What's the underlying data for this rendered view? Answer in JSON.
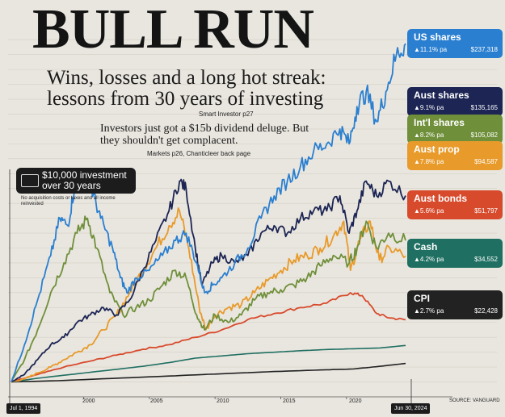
{
  "headline": "BULL RUN",
  "subhead": "Wins, losses and a long hot streak: lessons from 30 years of investing",
  "ref_smart": "Smart Investor p27",
  "dek": "Investors just got a $15b dividend deluge. But they shouldn't get complacent.",
  "ref_markets": "Markets p26, Chanticleer back page",
  "callout": {
    "line1": "$10,000 investment",
    "line2": "over 30 years",
    "icon": "cash-note-icon"
  },
  "note": "No acquisition costs or taxes and all income reinvested",
  "source": "SOURCE: VANGUARD",
  "chart_data": {
    "type": "line",
    "title": "",
    "xlabel": "",
    "ylabel": "",
    "x_ticks": [
      "2000",
      "2005",
      "2010",
      "2015",
      "2020"
    ],
    "start_label": "Jul 1, 1994",
    "end_label": "Jun 30, 2024",
    "xlim": [
      1994.5,
      2024.5
    ],
    "ylim": [
      0,
      245000
    ],
    "grid": true,
    "series": [
      {
        "name": "US shares",
        "rate": "▲11.1% pa",
        "value_label": "$237,318",
        "color": "#2a7fd0",
        "points": [
          [
            1994.5,
            10000
          ],
          [
            1995.5,
            35000
          ],
          [
            1996.5,
            65000
          ],
          [
            1997.5,
            95000
          ],
          [
            1998.2,
            120000
          ],
          [
            1998.8,
            115000
          ],
          [
            1999.3,
            140000
          ],
          [
            2000.0,
            150000
          ],
          [
            2000.6,
            140000
          ],
          [
            2001.3,
            120000
          ],
          [
            2002.2,
            100000
          ],
          [
            2002.8,
            80000
          ],
          [
            2003.3,
            70000
          ],
          [
            2004.0,
            80000
          ],
          [
            2005.0,
            85000
          ],
          [
            2006.0,
            95000
          ],
          [
            2007.0,
            105000
          ],
          [
            2007.8,
            110000
          ],
          [
            2008.6,
            90000
          ],
          [
            2009.2,
            70000
          ],
          [
            2009.8,
            75000
          ],
          [
            2010.5,
            80000
          ],
          [
            2011.5,
            90000
          ],
          [
            2012.5,
            100000
          ],
          [
            2013.5,
            120000
          ],
          [
            2014.5,
            135000
          ],
          [
            2015.5,
            145000
          ],
          [
            2016.5,
            155000
          ],
          [
            2017.5,
            165000
          ],
          [
            2018.5,
            170000
          ],
          [
            2019.5,
            180000
          ],
          [
            2020.2,
            170000
          ],
          [
            2020.8,
            195000
          ],
          [
            2021.5,
            205000
          ],
          [
            2022.3,
            185000
          ],
          [
            2023.0,
            205000
          ],
          [
            2023.8,
            230000
          ],
          [
            2024.5,
            237318
          ]
        ]
      },
      {
        "name": "Aust shares",
        "rate": "▲9.1% pa",
        "value_label": "$135,165",
        "color": "#1c2554",
        "points": [
          [
            1994.5,
            10000
          ],
          [
            1995.5,
            15000
          ],
          [
            1996.5,
            25000
          ],
          [
            1997.5,
            35000
          ],
          [
            1998.5,
            40000
          ],
          [
            1999.5,
            50000
          ],
          [
            2000.5,
            55000
          ],
          [
            2001.5,
            60000
          ],
          [
            2002.5,
            55000
          ],
          [
            2003.5,
            65000
          ],
          [
            2004.5,
            85000
          ],
          [
            2005.5,
            105000
          ],
          [
            2006.5,
            125000
          ],
          [
            2007.3,
            145000
          ],
          [
            2007.8,
            140000
          ],
          [
            2008.5,
            100000
          ],
          [
            2009.0,
            75000
          ],
          [
            2009.8,
            90000
          ],
          [
            2010.5,
            95000
          ],
          [
            2011.5,
            90000
          ],
          [
            2012.5,
            95000
          ],
          [
            2013.5,
            110000
          ],
          [
            2014.5,
            115000
          ],
          [
            2015.5,
            110000
          ],
          [
            2016.5,
            120000
          ],
          [
            2017.5,
            125000
          ],
          [
            2018.5,
            125000
          ],
          [
            2019.5,
            135000
          ],
          [
            2020.2,
            110000
          ],
          [
            2020.8,
            125000
          ],
          [
            2021.5,
            145000
          ],
          [
            2022.3,
            135000
          ],
          [
            2023.2,
            145000
          ],
          [
            2024.5,
            135165
          ]
        ]
      },
      {
        "name": "Int'l shares",
        "rate": "▲8.2% pa",
        "value_label": "$105,082",
        "color": "#6f8f3a",
        "points": [
          [
            1994.5,
            10000
          ],
          [
            1995.5,
            25000
          ],
          [
            1996.5,
            45000
          ],
          [
            1997.5,
            70000
          ],
          [
            1998.5,
            90000
          ],
          [
            1999.5,
            110000
          ],
          [
            2000.3,
            120000
          ],
          [
            2001.0,
            100000
          ],
          [
            2002.0,
            70000
          ],
          [
            2003.0,
            55000
          ],
          [
            2004.0,
            60000
          ],
          [
            2005.0,
            65000
          ],
          [
            2006.0,
            75000
          ],
          [
            2007.0,
            85000
          ],
          [
            2007.8,
            80000
          ],
          [
            2008.6,
            55000
          ],
          [
            2009.2,
            45000
          ],
          [
            2010.0,
            55000
          ],
          [
            2011.0,
            50000
          ],
          [
            2012.0,
            55000
          ],
          [
            2013.0,
            65000
          ],
          [
            2014.0,
            70000
          ],
          [
            2015.0,
            72000
          ],
          [
            2016.0,
            75000
          ],
          [
            2017.0,
            80000
          ],
          [
            2018.0,
            88000
          ],
          [
            2019.0,
            95000
          ],
          [
            2020.2,
            90000
          ],
          [
            2020.8,
            100000
          ],
          [
            2021.5,
            118000
          ],
          [
            2022.3,
            100000
          ],
          [
            2023.2,
            110000
          ],
          [
            2024.5,
            105082
          ]
        ]
      },
      {
        "name": "Aust prop",
        "rate": "▲7.8% pa",
        "value_label": "$94,587",
        "color": "#e89a2a",
        "points": [
          [
            1994.5,
            10000
          ],
          [
            1995.5,
            12000
          ],
          [
            1996.5,
            16000
          ],
          [
            1997.5,
            20000
          ],
          [
            1998.5,
            25000
          ],
          [
            1999.5,
            30000
          ],
          [
            2000.5,
            35000
          ],
          [
            2001.5,
            45000
          ],
          [
            2002.5,
            55000
          ],
          [
            2003.5,
            70000
          ],
          [
            2004.5,
            85000
          ],
          [
            2005.5,
            100000
          ],
          [
            2006.5,
            115000
          ],
          [
            2007.3,
            125000
          ],
          [
            2008.0,
            100000
          ],
          [
            2008.8,
            60000
          ],
          [
            2009.3,
            45000
          ],
          [
            2010.0,
            55000
          ],
          [
            2011.0,
            60000
          ],
          [
            2012.0,
            62000
          ],
          [
            2013.0,
            70000
          ],
          [
            2014.0,
            78000
          ],
          [
            2015.0,
            85000
          ],
          [
            2016.0,
            92000
          ],
          [
            2017.0,
            95000
          ],
          [
            2018.0,
            100000
          ],
          [
            2019.0,
            108000
          ],
          [
            2019.8,
            118000
          ],
          [
            2020.3,
            85000
          ],
          [
            2021.0,
            105000
          ],
          [
            2021.8,
            118000
          ],
          [
            2022.5,
            92000
          ],
          [
            2023.3,
            100000
          ],
          [
            2024.5,
            94587
          ]
        ]
      },
      {
        "name": "Aust bonds",
        "rate": "▲5.6% pa",
        "value_label": "$51,797",
        "color": "#d84a2c",
        "points": [
          [
            1994.5,
            10000
          ],
          [
            1996.5,
            15000
          ],
          [
            1998.5,
            20000
          ],
          [
            2000.5,
            24000
          ],
          [
            2002.5,
            28000
          ],
          [
            2004.5,
            32000
          ],
          [
            2006.5,
            35000
          ],
          [
            2008.5,
            40000
          ],
          [
            2010.5,
            45000
          ],
          [
            2012.5,
            52000
          ],
          [
            2014.5,
            56000
          ],
          [
            2016.5,
            60000
          ],
          [
            2018.5,
            63000
          ],
          [
            2020.3,
            70000
          ],
          [
            2021.2,
            68000
          ],
          [
            2022.3,
            56000
          ],
          [
            2023.3,
            53000
          ],
          [
            2024.5,
            51797
          ]
        ]
      },
      {
        "name": "Cash",
        "rate": "▲4.2% pa",
        "value_label": "$34,552",
        "color": "#1f6f62",
        "points": [
          [
            1994.5,
            10000
          ],
          [
            1996.5,
            12500
          ],
          [
            1998.5,
            14500
          ],
          [
            2000.5,
            16500
          ],
          [
            2002.5,
            18500
          ],
          [
            2004.5,
            20500
          ],
          [
            2006.5,
            23000
          ],
          [
            2008.5,
            26000
          ],
          [
            2010.5,
            27500
          ],
          [
            2012.5,
            29000
          ],
          [
            2014.5,
            30000
          ],
          [
            2016.5,
            31000
          ],
          [
            2018.5,
            31800
          ],
          [
            2020.5,
            32300
          ],
          [
            2022.5,
            32800
          ],
          [
            2024.5,
            34552
          ]
        ]
      },
      {
        "name": "CPI",
        "rate": "▲2.7% pa",
        "value_label": "$22,428",
        "color": "#222222",
        "points": [
          [
            1994.5,
            10000
          ],
          [
            1998.5,
            11000
          ],
          [
            2002.5,
            12500
          ],
          [
            2006.5,
            14000
          ],
          [
            2010.5,
            15500
          ],
          [
            2014.5,
            17000
          ],
          [
            2018.5,
            18200
          ],
          [
            2020.5,
            18700
          ],
          [
            2022.5,
            20500
          ],
          [
            2024.5,
            22428
          ]
        ]
      }
    ]
  }
}
